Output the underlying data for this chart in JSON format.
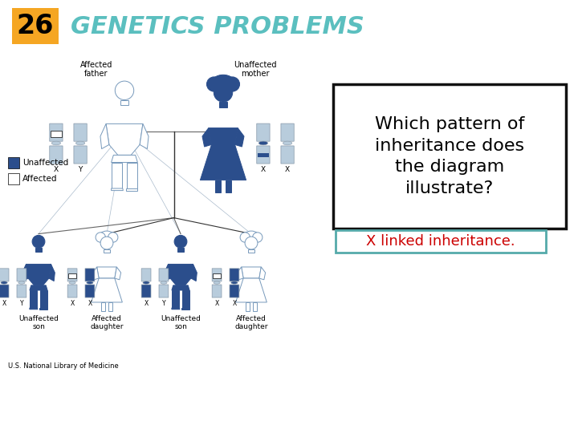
{
  "title_number": "26",
  "title_number_bg": "#F5A623",
  "title_text": "GENETICS PROBLEMS",
  "title_color": "#5BBFBF",
  "bg_color": "#FFFFFF",
  "question_text": "Which pattern of\ninheritance does\nthe diagram\nillustrate?",
  "answer_text": "X linked inheritance.",
  "answer_color": "#CC0000",
  "answer_box_border": "#55AAAA",
  "question_box_border": "#111111",
  "dark_blue": "#2B4E8C",
  "light_blue": "#8BAAC8",
  "chr_light": "#B8CCDC",
  "chr_dark": "#2B4E8C",
  "outline_col": "#7799BB",
  "source_text": "U.S. National Library of Medicine",
  "unaffected_label": "Unaffected",
  "affected_label": "Affected",
  "line_color": "#666666",
  "line_color_dark": "#333333"
}
